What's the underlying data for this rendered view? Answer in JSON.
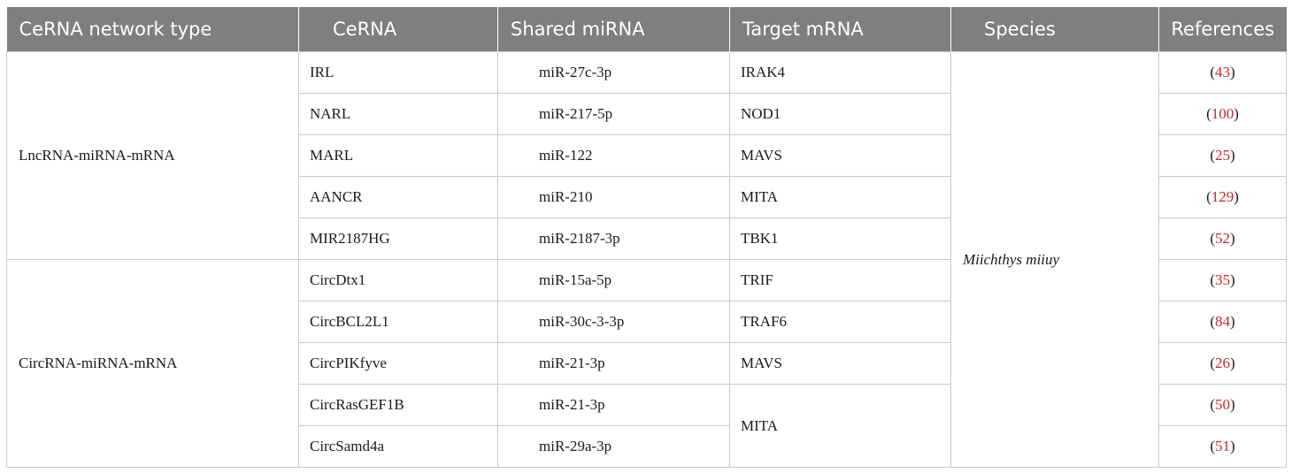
{
  "header": {
    "col_type": "CeRNA network type",
    "col_cerna": "CeRNA",
    "col_mirna": "Shared miRNA",
    "col_target": "Target mRNA",
    "col_species": "Species",
    "col_refs": "References"
  },
  "groups": {
    "lnc": "LncRNA-miRNA-mRNA",
    "circ": "CircRNA-miRNA-mRNA"
  },
  "species": "Miichthys miiuy",
  "rows": [
    {
      "cerna": "IRL",
      "mirna": "miR-27c-3p",
      "target": "IRAK4",
      "ref": "43"
    },
    {
      "cerna": "NARL",
      "mirna": "miR-217-5p",
      "target": "NOD1",
      "ref": "100"
    },
    {
      "cerna": "MARL",
      "mirna": "miR-122",
      "target": "MAVS",
      "ref": "25"
    },
    {
      "cerna": "AANCR",
      "mirna": "miR-210",
      "target": "MITA",
      "ref": "129"
    },
    {
      "cerna": "MIR2187HG",
      "mirna": "miR-2187-3p",
      "target": "TBK1",
      "ref": "52"
    },
    {
      "cerna": "CircDtx1",
      "mirna": "miR-15a-5p",
      "target": "TRIF",
      "ref": "35"
    },
    {
      "cerna": "CircBCL2L1",
      "mirna": "miR-30c-3-3p",
      "target": "TRAF6",
      "ref": "84"
    },
    {
      "cerna": "CircPIKfyve",
      "mirna": "miR-21-3p",
      "target": "MAVS",
      "ref": "26"
    },
    {
      "cerna": "CircRasGEF1B",
      "mirna": "miR-21-3p",
      "target": "MITA",
      "ref": "50"
    },
    {
      "cerna": "CircSamd4a",
      "mirna": "miR-29a-3p",
      "target": "",
      "ref": "51"
    }
  ],
  "colors": {
    "header_bg": "#7f7f7f",
    "header_text": "#ffffff",
    "ref_link": "#c0282d",
    "rule": "#c8c8c8"
  }
}
